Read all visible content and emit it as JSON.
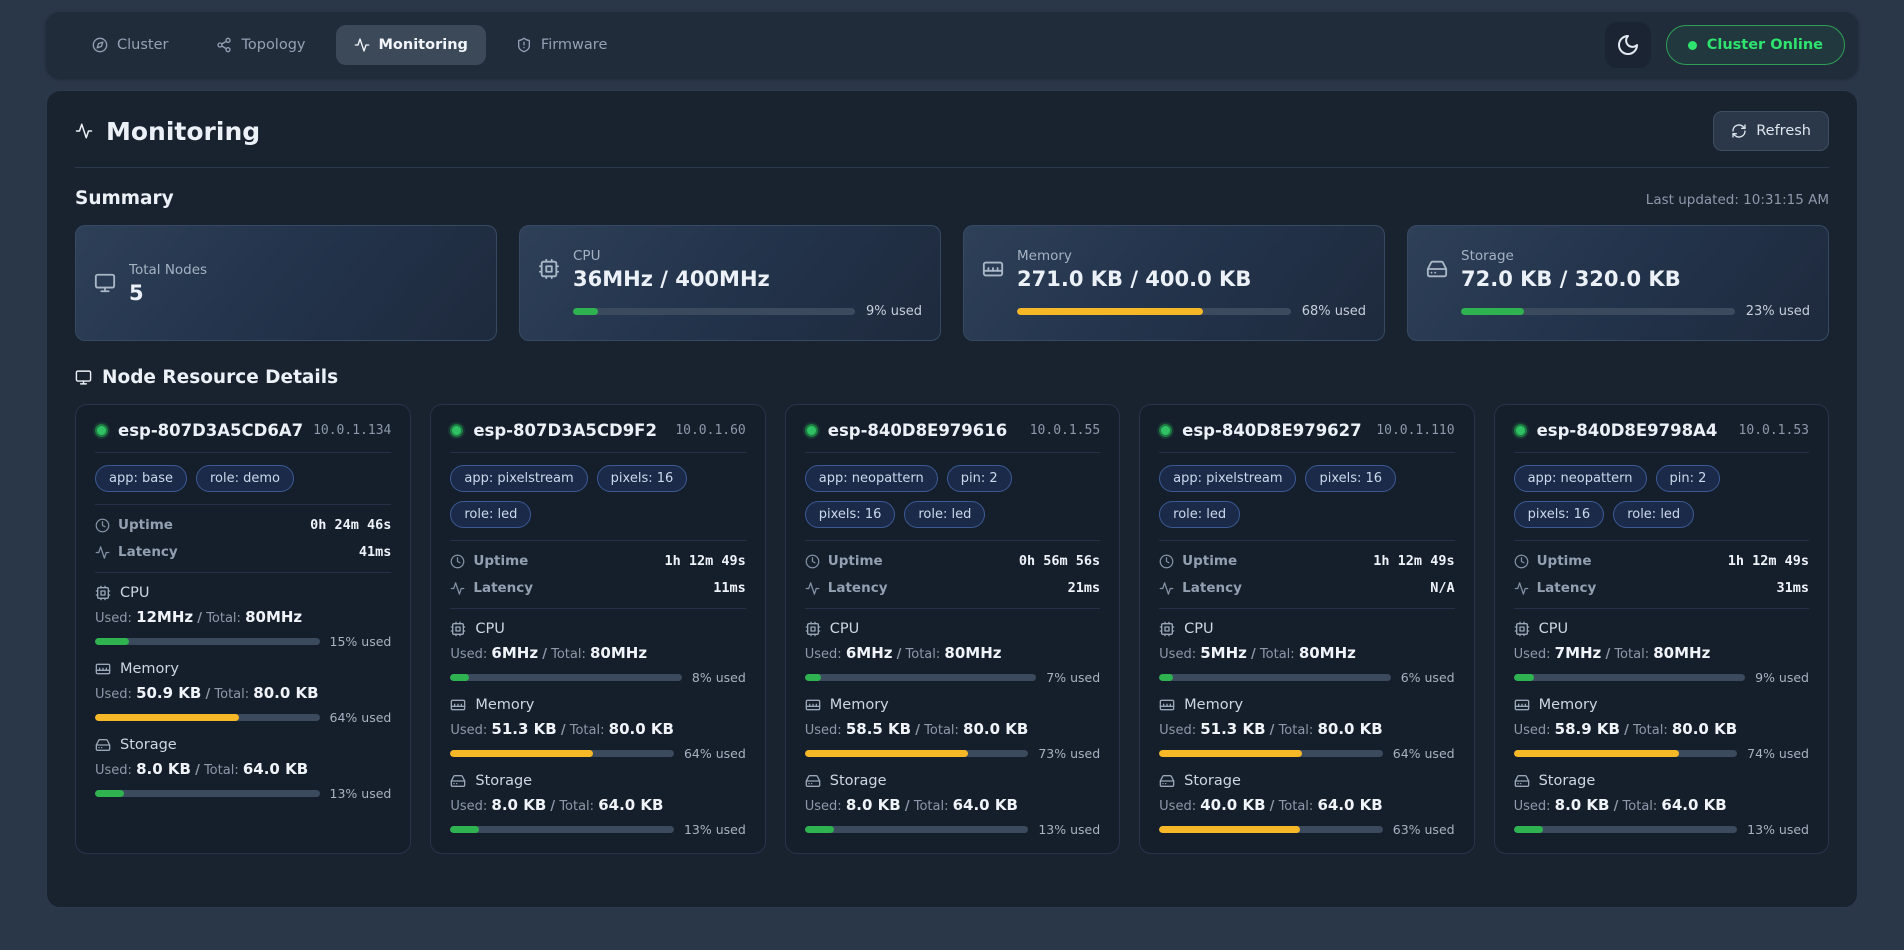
{
  "nav": {
    "tabs": [
      {
        "label": "Cluster",
        "icon": "cluster-compass-icon",
        "active": false
      },
      {
        "label": "Topology",
        "icon": "topology-icon",
        "active": false
      },
      {
        "label": "Monitoring",
        "icon": "activity-icon",
        "active": true
      },
      {
        "label": "Firmware",
        "icon": "firmware-shield-icon",
        "active": false
      }
    ],
    "theme_toggle_icon": "moon-icon",
    "status_badge": {
      "label": "Cluster Online",
      "color": "#2ee36e"
    }
  },
  "page": {
    "title": "Monitoring",
    "title_icon": "activity-icon",
    "refresh_label": "Refresh"
  },
  "summary": {
    "heading": "Summary",
    "last_updated": "Last updated: 10:31:15 AM",
    "cards": [
      {
        "label": "Total Nodes",
        "icon": "monitor-icon",
        "value": "5"
      },
      {
        "label": "CPU",
        "icon": "cpu-icon",
        "value": "36MHz / 400MHz",
        "percent": 9,
        "percent_label": "9% used",
        "bar_color": "#2fb350"
      },
      {
        "label": "Memory",
        "icon": "memory-icon",
        "value": "271.0 KB / 400.0 KB",
        "percent": 68,
        "percent_label": "68% used",
        "bar_color": "#f7b827"
      },
      {
        "label": "Storage",
        "icon": "harddrive-icon",
        "value": "72.0 KB / 320.0 KB",
        "percent": 23,
        "percent_label": "23% used",
        "bar_color": "#2fb350"
      }
    ]
  },
  "nodes": {
    "heading": "Node Resource Details",
    "heading_icon": "monitor-icon",
    "labels": {
      "uptime": "Uptime",
      "latency": "Latency",
      "used": "Used:",
      "total": "Total:",
      "separator": "/"
    },
    "cards": [
      {
        "name": "esp-807D3A5CD6A7",
        "ip": "10.0.1.134",
        "online": true,
        "tags": [
          "app: base",
          "role: demo"
        ],
        "uptime": "0h 24m 46s",
        "latency": "41ms",
        "resources": [
          {
            "label": "CPU",
            "icon": "cpu-icon",
            "used": "12MHz",
            "total": "80MHz",
            "percent": 15,
            "percent_label": "15% used",
            "bar_color": "#2fb350"
          },
          {
            "label": "Memory",
            "icon": "memory-icon",
            "used": "50.9 KB",
            "total": "80.0 KB",
            "percent": 64,
            "percent_label": "64% used",
            "bar_color": "#f7b827"
          },
          {
            "label": "Storage",
            "icon": "harddrive-icon",
            "used": "8.0 KB",
            "total": "64.0 KB",
            "percent": 13,
            "percent_label": "13% used",
            "bar_color": "#2fb350"
          }
        ]
      },
      {
        "name": "esp-807D3A5CD9F2",
        "ip": "10.0.1.60",
        "online": true,
        "tags": [
          "app: pixelstream",
          "pixels: 16",
          "role: led"
        ],
        "uptime": "1h 12m 49s",
        "latency": "11ms",
        "resources": [
          {
            "label": "CPU",
            "icon": "cpu-icon",
            "used": "6MHz",
            "total": "80MHz",
            "percent": 8,
            "percent_label": "8% used",
            "bar_color": "#2fb350"
          },
          {
            "label": "Memory",
            "icon": "memory-icon",
            "used": "51.3 KB",
            "total": "80.0 KB",
            "percent": 64,
            "percent_label": "64% used",
            "bar_color": "#f7b827"
          },
          {
            "label": "Storage",
            "icon": "harddrive-icon",
            "used": "8.0 KB",
            "total": "64.0 KB",
            "percent": 13,
            "percent_label": "13% used",
            "bar_color": "#2fb350"
          }
        ]
      },
      {
        "name": "esp-840D8E979616",
        "ip": "10.0.1.55",
        "online": true,
        "tags": [
          "app: neopattern",
          "pin: 2",
          "pixels: 16",
          "role: led"
        ],
        "uptime": "0h 56m 56s",
        "latency": "21ms",
        "resources": [
          {
            "label": "CPU",
            "icon": "cpu-icon",
            "used": "6MHz",
            "total": "80MHz",
            "percent": 7,
            "percent_label": "7% used",
            "bar_color": "#2fb350"
          },
          {
            "label": "Memory",
            "icon": "memory-icon",
            "used": "58.5 KB",
            "total": "80.0 KB",
            "percent": 73,
            "percent_label": "73% used",
            "bar_color": "#f7b827"
          },
          {
            "label": "Storage",
            "icon": "harddrive-icon",
            "used": "8.0 KB",
            "total": "64.0 KB",
            "percent": 13,
            "percent_label": "13% used",
            "bar_color": "#2fb350"
          }
        ]
      },
      {
        "name": "esp-840D8E979627",
        "ip": "10.0.1.110",
        "online": true,
        "tags": [
          "app: pixelstream",
          "pixels: 16",
          "role: led"
        ],
        "uptime": "1h 12m 49s",
        "latency": "N/A",
        "resources": [
          {
            "label": "CPU",
            "icon": "cpu-icon",
            "used": "5MHz",
            "total": "80MHz",
            "percent": 6,
            "percent_label": "6% used",
            "bar_color": "#2fb350"
          },
          {
            "label": "Memory",
            "icon": "memory-icon",
            "used": "51.3 KB",
            "total": "80.0 KB",
            "percent": 64,
            "percent_label": "64% used",
            "bar_color": "#f7b827"
          },
          {
            "label": "Storage",
            "icon": "harddrive-icon",
            "used": "40.0 KB",
            "total": "64.0 KB",
            "percent": 63,
            "percent_label": "63% used",
            "bar_color": "#f7b827"
          }
        ]
      },
      {
        "name": "esp-840D8E9798A4",
        "ip": "10.0.1.53",
        "online": true,
        "tags": [
          "app: neopattern",
          "pin: 2",
          "pixels: 16",
          "role: led"
        ],
        "uptime": "1h 12m 49s",
        "latency": "31ms",
        "resources": [
          {
            "label": "CPU",
            "icon": "cpu-icon",
            "used": "7MHz",
            "total": "80MHz",
            "percent": 9,
            "percent_label": "9% used",
            "bar_color": "#2fb350"
          },
          {
            "label": "Memory",
            "icon": "memory-icon",
            "used": "58.9 KB",
            "total": "80.0 KB",
            "percent": 74,
            "percent_label": "74% used",
            "bar_color": "#f7b827"
          },
          {
            "label": "Storage",
            "icon": "harddrive-icon",
            "used": "8.0 KB",
            "total": "64.0 KB",
            "percent": 13,
            "percent_label": "13% used",
            "bar_color": "#2fb350"
          }
        ]
      }
    ]
  }
}
